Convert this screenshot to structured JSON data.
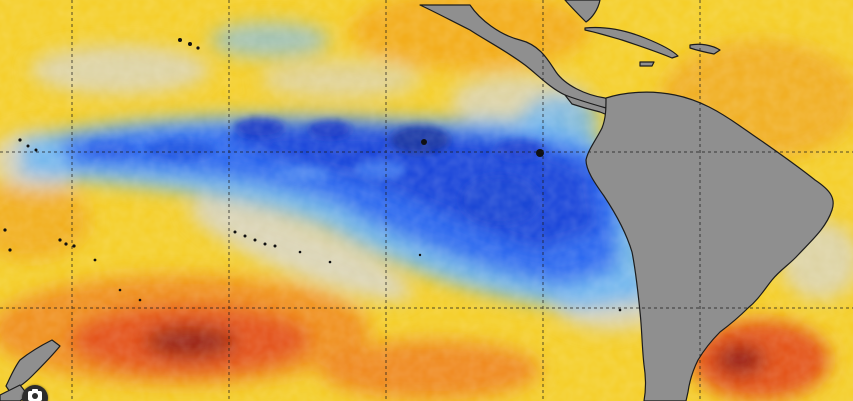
{
  "map": {
    "type": "sea-surface-temperature-anomaly",
    "region": "eastern-pacific-south-america",
    "graticule": {
      "visible": true,
      "color": "#1a1a1a"
    },
    "palette": {
      "strong_cold": "#1a3fd6",
      "cold": "#2f6bf0",
      "cool": "#6fb6f2",
      "neutral": "#d4d6da",
      "warm": "#f5d326",
      "warmer": "#f3a51c",
      "hot": "#e4501a",
      "hottest": "#8e1b12",
      "land": "#8f8f8f",
      "coastline": "#1c1c1c"
    },
    "land_masses": [
      "south-america",
      "central-america",
      "mexico",
      "caribbean-islands",
      "new-zealand"
    ]
  },
  "badge": {
    "icon": "camera-icon"
  }
}
